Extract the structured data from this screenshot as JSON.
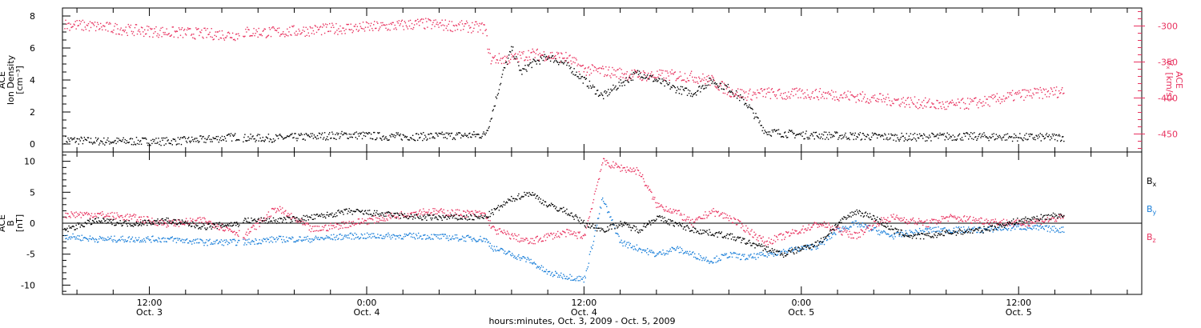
{
  "xlabel": "hours:minutes, Oct.  3, 2009  -  Oct.  5, 2009",
  "x_ticks": [
    {
      "time": "12:00",
      "date": "Oct. 3",
      "hours": 12
    },
    {
      "time": "0:00",
      "date": "Oct. 4",
      "hours": 24
    },
    {
      "time": "12:00",
      "date": "Oct. 4",
      "hours": 36
    },
    {
      "time": "0:00",
      "date": "Oct. 5",
      "hours": 48
    },
    {
      "time": "12:00",
      "date": "Oct. 5",
      "hours": 60
    }
  ],
  "colors": {
    "black": "#000000",
    "pink": "#e8325f",
    "blue": "#1a7fd9",
    "frame": "#000000"
  },
  "chart_data": [
    {
      "type": "scatter",
      "panel": "top",
      "ylabel_left": [
        "ACE",
        "Ion Density",
        "[cm⁻³]"
      ],
      "ylabel_right": [
        "ACE",
        "Vₓ [km/s]"
      ],
      "xlim": [
        7.2,
        66.8
      ],
      "ylim": [
        -0.5,
        8.5
      ],
      "yticks": [
        0,
        2,
        4,
        6,
        8
      ],
      "ylim_right": [
        -475,
        -275
      ],
      "yticks_right": [
        -300,
        -350,
        -400,
        -450
      ],
      "series": [
        {
          "name": "Ion Density",
          "color": "#000000",
          "axis": "left",
          "x": [
            7.3,
            9,
            11,
            13,
            15,
            16.9,
            17.2,
            19,
            21,
            23,
            25,
            27,
            30.5,
            30.8,
            31.5,
            32,
            32.5,
            33,
            34,
            35,
            36,
            37,
            38,
            39,
            40,
            41,
            42,
            43,
            44,
            45,
            46,
            47,
            48,
            50,
            52,
            54,
            56,
            58,
            60,
            62.5
          ],
          "y": [
            0.3,
            0.2,
            0.2,
            0.2,
            0.3,
            0.5,
            0.4,
            0.4,
            0.5,
            0.6,
            0.5,
            0.5,
            0.6,
            1.5,
            4.5,
            6.0,
            4.5,
            5.0,
            5.5,
            5.0,
            4.0,
            3.0,
            3.8,
            4.5,
            4.0,
            3.5,
            3.2,
            4.0,
            3.5,
            2.5,
            0.8,
            0.7,
            0.6,
            0.55,
            0.5,
            0.45,
            0.5,
            0.5,
            0.45,
            0.45
          ]
        },
        {
          "name": "Vx",
          "color": "#e8325f",
          "axis": "right",
          "x": [
            7.3,
            9,
            11,
            13,
            15,
            16.9,
            17.2,
            19,
            21,
            23,
            25,
            27,
            30.5,
            30.8,
            32,
            33,
            34,
            35,
            36,
            37,
            38,
            39,
            40,
            41,
            42,
            43,
            44,
            45,
            46,
            47,
            48,
            50,
            52,
            54,
            56,
            58,
            60,
            62.5
          ],
          "y": [
            -297,
            -300,
            -305,
            -308,
            -310,
            -312,
            -308,
            -308,
            -305,
            -302,
            -300,
            -296,
            -302,
            -345,
            -345,
            -338,
            -340,
            -343,
            -360,
            -362,
            -365,
            -368,
            -368,
            -368,
            -370,
            -375,
            -390,
            -395,
            -392,
            -395,
            -393,
            -395,
            -400,
            -405,
            -410,
            -405,
            -395,
            -390
          ]
        }
      ]
    },
    {
      "type": "scatter",
      "panel": "bottom",
      "ylabel_left": [
        "ACE",
        "B",
        "[nT]"
      ],
      "xlim": [
        7.2,
        66.8
      ],
      "ylim": [
        -11.5,
        11.5
      ],
      "yticks": [
        10,
        5,
        0,
        -5,
        -10
      ],
      "zero_line": true,
      "series": [
        {
          "name": "Bx",
          "color": "#000000",
          "x": [
            7.3,
            9,
            11,
            13,
            15,
            16.9,
            17.2,
            19,
            21,
            23,
            25,
            27,
            30.5,
            31,
            32,
            33,
            34,
            35,
            36,
            37,
            38,
            39,
            40,
            41,
            42,
            43,
            44,
            45,
            46,
            47,
            48,
            49,
            50,
            51,
            52,
            53,
            54,
            55,
            56,
            58,
            60,
            62.5
          ],
          "y": [
            -1.0,
            0.5,
            0.0,
            0.5,
            -0.5,
            0.0,
            0.5,
            0.5,
            1.0,
            2.0,
            1.5,
            1.0,
            1.0,
            2.0,
            4.0,
            5.0,
            3.0,
            2.0,
            0.0,
            -1.0,
            0.0,
            -1.0,
            1.0,
            0.0,
            -1.0,
            -1.5,
            -2.0,
            -3.0,
            -4.0,
            -5.0,
            -4.0,
            -3.0,
            0.0,
            2.0,
            1.0,
            -1.0,
            -2.0,
            -2.0,
            -1.5,
            -1.0,
            0.5,
            1.5
          ]
        },
        {
          "name": "By",
          "color": "#1a7fd9",
          "x": [
            7.3,
            9,
            11,
            13,
            15,
            16.9,
            17.2,
            19,
            21,
            23,
            25,
            27,
            30.5,
            31,
            32,
            33,
            34,
            35,
            36,
            37,
            38,
            39,
            40,
            41,
            42,
            43,
            44,
            45,
            46,
            47,
            48,
            49,
            50,
            51,
            52,
            53,
            54,
            55,
            56,
            58,
            60,
            62.5
          ],
          "y": [
            -2.0,
            -2.5,
            -2.5,
            -2.5,
            -3.0,
            -3.0,
            -3.0,
            -2.5,
            -2.5,
            -2.0,
            -2.0,
            -2.0,
            -2.5,
            -4.0,
            -5.0,
            -6.0,
            -8.0,
            -8.5,
            -9.0,
            4.0,
            -3.0,
            -4.0,
            -5.0,
            -4.0,
            -5.0,
            -6.0,
            -5.0,
            -5.5,
            -5.0,
            -4.5,
            -4.0,
            -3.5,
            -1.0,
            0.0,
            -1.0,
            -2.0,
            -1.5,
            -1.0,
            -1.0,
            -1.0,
            -0.5,
            -1.0
          ]
        },
        {
          "name": "Bz",
          "color": "#e8325f",
          "x": [
            7.3,
            9,
            11,
            13,
            15,
            16.9,
            17.2,
            19,
            21,
            23,
            25,
            27,
            30.5,
            31,
            32,
            33,
            34,
            35,
            36,
            37,
            38,
            39,
            40,
            41,
            42,
            43,
            44,
            45,
            46,
            47,
            48,
            49,
            50,
            51,
            52,
            53,
            54,
            55,
            56,
            58,
            60,
            62.5
          ],
          "y": [
            1.5,
            1.5,
            1.0,
            0.0,
            0.5,
            -1.5,
            -2.0,
            2.5,
            -1.0,
            0.0,
            1.0,
            2.0,
            1.5,
            -1.0,
            -2.0,
            -3.0,
            -2.0,
            -1.5,
            -2.0,
            10.0,
            9.0,
            8.5,
            3.0,
            2.0,
            0.0,
            2.0,
            1.0,
            -1.0,
            -3.0,
            -2.0,
            -1.0,
            0.0,
            -1.0,
            -2.0,
            0.0,
            1.0,
            0.5,
            0.0,
            1.0,
            0.5,
            0.0,
            1.0
          ]
        }
      ],
      "legend": [
        {
          "label": "B",
          "sub": "x",
          "color": "#000000"
        },
        {
          "label": "B",
          "sub": "y",
          "color": "#1a7fd9"
        },
        {
          "label": "B",
          "sub": "z",
          "color": "#e8325f"
        }
      ]
    }
  ]
}
